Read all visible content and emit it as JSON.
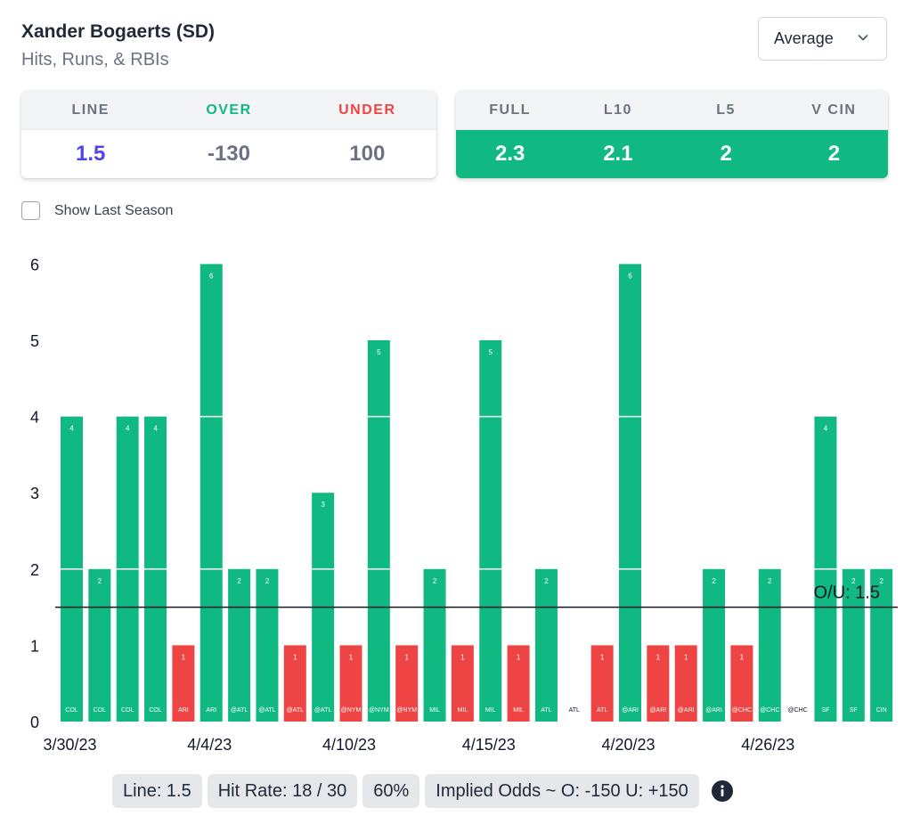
{
  "header": {
    "player_name": "Xander Bogaerts (SD)",
    "stat_type": "Hits, Runs, & RBIs",
    "dropdown_value": "Average"
  },
  "line_card": {
    "labels": {
      "line": "LINE",
      "over": "OVER",
      "under": "UNDER"
    },
    "values": {
      "line": "1.5",
      "over": "-130",
      "under": "100"
    }
  },
  "avg_card": {
    "labels": {
      "full": "FULL",
      "l10": "L10",
      "l5": "L5",
      "vs": "V CIN"
    },
    "values": {
      "full": "2.3",
      "l10": "2.1",
      "l5": "2",
      "vs": "2"
    }
  },
  "colors": {
    "over": "#10b981",
    "under": "#ef4444",
    "line": "#4f46e5"
  },
  "show_last_season_label": "Show Last Season",
  "chart_data": {
    "type": "bar",
    "ylim": [
      0,
      6
    ],
    "yticks": [
      0,
      1,
      2,
      3,
      4,
      5,
      6
    ],
    "line_value": 1.5,
    "line_label": "O/U: 1.5",
    "date_labels": [
      {
        "index": 0,
        "label": "3/30/23"
      },
      {
        "index": 5,
        "label": "4/4/23"
      },
      {
        "index": 10,
        "label": "4/10/23"
      },
      {
        "index": 15,
        "label": "4/15/23"
      },
      {
        "index": 20,
        "label": "4/20/23"
      },
      {
        "index": 25,
        "label": "4/26/23"
      }
    ],
    "categories": [
      "COL",
      "COL",
      "COL",
      "COL",
      "ARI",
      "ARI",
      "@ATL",
      "@ATL",
      "@ATL",
      "@ATL",
      "@NYM",
      "@NYM",
      "@NYM",
      "MIL",
      "MIL",
      "MIL",
      "MIL",
      "ATL",
      "ATL",
      "ATL",
      "@ARI",
      "@ARI",
      "@ARI",
      "@ARI",
      "@CHC",
      "@CHC",
      "@CHC",
      "SF",
      "SF",
      "CIN"
    ],
    "values": [
      4,
      2,
      4,
      4,
      1,
      6,
      2,
      2,
      1,
      3,
      1,
      5,
      1,
      2,
      1,
      5,
      1,
      2,
      0,
      1,
      6,
      1,
      1,
      2,
      1,
      2,
      0,
      4,
      2,
      2
    ]
  },
  "footer": {
    "line": "Line: 1.5",
    "hit_rate": "Hit Rate: 18 / 30",
    "percent": "60%",
    "implied_odds": "Implied Odds ~ O: -150 U: +150"
  }
}
